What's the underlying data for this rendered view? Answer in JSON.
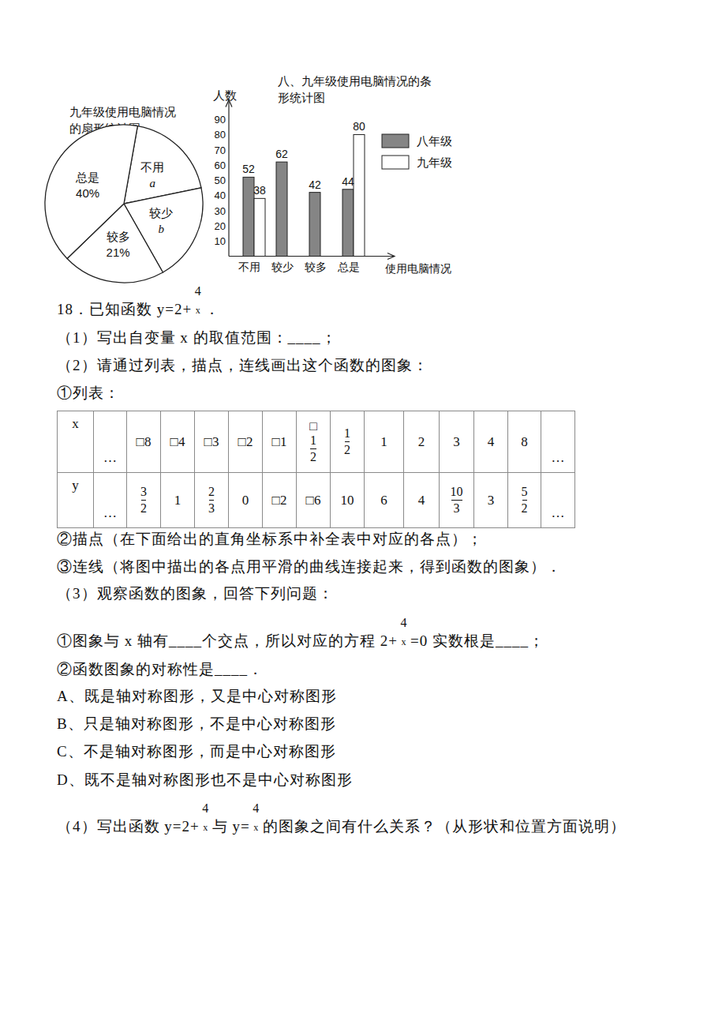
{
  "chart_data": [
    {
      "type": "pie",
      "title": "九年级使用电脑情况\n的扇形统计图",
      "categories": [
        "不用",
        "较少",
        "较多",
        "总是"
      ],
      "values": [
        19,
        20,
        21,
        40
      ],
      "value_labels": [
        "a",
        "b",
        "21%",
        "40%"
      ],
      "color": "#ffffff"
    },
    {
      "type": "bar",
      "title": "八、九年级使用电脑情况的条\n形统计图",
      "y_label": "人数",
      "x_label": "使用电脑情况",
      "categories": [
        "不用",
        "较少",
        "较多",
        "总是"
      ],
      "series": [
        {
          "name": "八年级",
          "color": "#858585",
          "values": [
            52,
            62,
            42,
            44
          ]
        },
        {
          "name": "九年级",
          "color": "#ffffff",
          "values": [
            38,
            null,
            null,
            80
          ]
        }
      ],
      "ylim": [
        0,
        95
      ],
      "yticks": [
        10,
        20,
        30,
        40,
        50,
        60,
        70,
        80,
        90
      ],
      "data_labels": true,
      "legend": "right"
    }
  ],
  "problem": {
    "lines_before": [
      {
        "segments": [
          {
            "text": "18．已知函数 y=2+"
          },
          {
            "num": "4",
            "den": "x"
          },
          {
            "text": "．"
          }
        ]
      },
      {
        "segments": [
          {
            "text": "（1）写出自变量 x 的取值范围：____；"
          }
        ]
      },
      {
        "segments": [
          {
            "text": "（2）请通过列表，描点，连线画出这个函数的图象："
          }
        ]
      },
      {
        "segments": [
          {
            "text": "①列表："
          }
        ]
      }
    ],
    "table": {
      "rows": [
        [
          "x",
          "…",
          "□8",
          "□4",
          "□3",
          "□2",
          "□1",
          {
            "sign": "□",
            "num": "1",
            "den": "2"
          },
          {
            "num": "1",
            "den": "2"
          },
          "1",
          "2",
          "3",
          "4",
          "8",
          "…"
        ],
        [
          "y",
          "…",
          {
            "num": "3",
            "den": "2"
          },
          "1",
          {
            "num": "2",
            "den": "3"
          },
          "0",
          "□2",
          "□6",
          "10",
          "6",
          "4",
          {
            "num": "10",
            "den": "3"
          },
          "3",
          {
            "num": "5",
            "den": "2"
          },
          "…"
        ]
      ]
    },
    "lines_after": [
      {
        "segments": [
          {
            "text": "②描点（在下面给出的直角坐标系中补全表中对应的各点）；"
          }
        ]
      },
      {
        "segments": [
          {
            "text": "③连线（将图中描出的各点用平滑的曲线连接起来，得到函数的图象）．"
          }
        ]
      },
      {
        "segments": [
          {
            "text": "（3）观察函数的图象，回答下列问题："
          }
        ]
      },
      {
        "segments": [
          {
            "text": "①图象与 x 轴有____个交点，所以对应的方程 2+"
          },
          {
            "num": "4",
            "den": "x"
          },
          {
            "text": "=0 实数根是____；"
          }
        ]
      },
      {
        "segments": [
          {
            "text": "②函数图象的对称性是____．"
          }
        ]
      },
      {
        "segments": [
          {
            "text": "A、既是轴对称图形，又是中心对称图形"
          }
        ]
      },
      {
        "segments": [
          {
            "text": "B、只是轴对称图形，不是中心对称图形"
          }
        ]
      },
      {
        "segments": [
          {
            "text": "C、不是轴对称图形，而是中心对称图形"
          }
        ]
      },
      {
        "segments": [
          {
            "text": "D、既不是轴对称图形也不是中心对称图形"
          }
        ]
      },
      {
        "segments": [
          {
            "text": "（4）写出函数 y=2+"
          },
          {
            "num": "4",
            "den": "x"
          },
          {
            "text": "与 y="
          },
          {
            "num": "4",
            "den": "x"
          },
          {
            "text": "的图象之间有什么关系？（从形状和位置方面说明）"
          }
        ]
      }
    ]
  }
}
